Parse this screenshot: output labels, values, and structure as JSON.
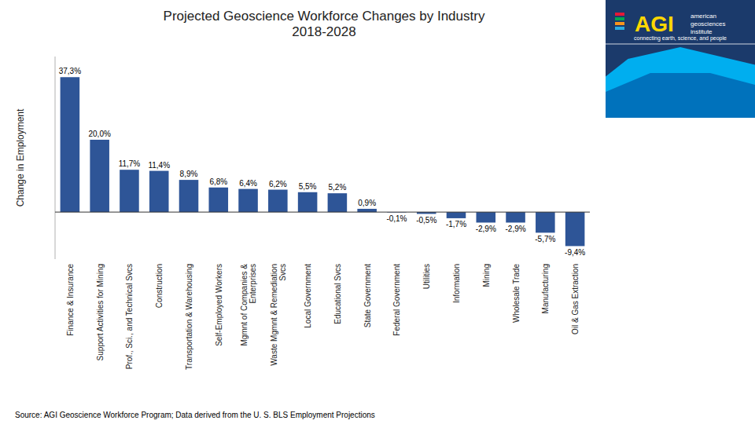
{
  "chart_data": {
    "type": "bar",
    "title": "Projected Geoscience Workforce Changes by Industry\n2018-2028",
    "y_label": "Change in Employment",
    "categories": [
      "Finance & Insurance",
      "Support Activities for Mining",
      "Prof., Sci., and Technical Svcs",
      "Construction",
      "Transportation & Warehousing",
      "Self-Employed Workers",
      "Mgmnt of Companies &\nEnterprises",
      "Waste Mgmnt & Remediation\nSvcs",
      "Local Government",
      "Educational Svcs",
      "State Government",
      "Federal Government",
      "Utilities",
      "Information",
      "Mining",
      "Wholesale Trade",
      "Manufacturing",
      "Oil & Gas Extraction"
    ],
    "values": [
      37.3,
      20.0,
      11.7,
      11.4,
      8.9,
      6.8,
      6.4,
      6.2,
      5.5,
      5.2,
      0.9,
      -0.1,
      -0.5,
      -1.7,
      -2.9,
      -2.9,
      -5.7,
      -9.4
    ],
    "value_labels": [
      "37,3%",
      "20,0%",
      "11,7%",
      "11,4%",
      "8,9%",
      "6,8%",
      "6,4%",
      "6,2%",
      "5,5%",
      "5,2%",
      "0,9%",
      "-0,1%",
      "-0,5%",
      "-1,7%",
      "-2,9%",
      "-2,9%",
      "-5,7%",
      "-9,4%"
    ],
    "color": "#2E5597",
    "ylim": [
      -13,
      43
    ],
    "data_labels": true,
    "tick_labels": "x",
    "grid": false,
    "annotations": [
      "Source: AGI Geoscience Workforce Program; Data derived from the U. S. BLS Employment Projections",
      "AGI",
      "american",
      "geosciences",
      "institute",
      "connecting earth, science, and people"
    ]
  }
}
